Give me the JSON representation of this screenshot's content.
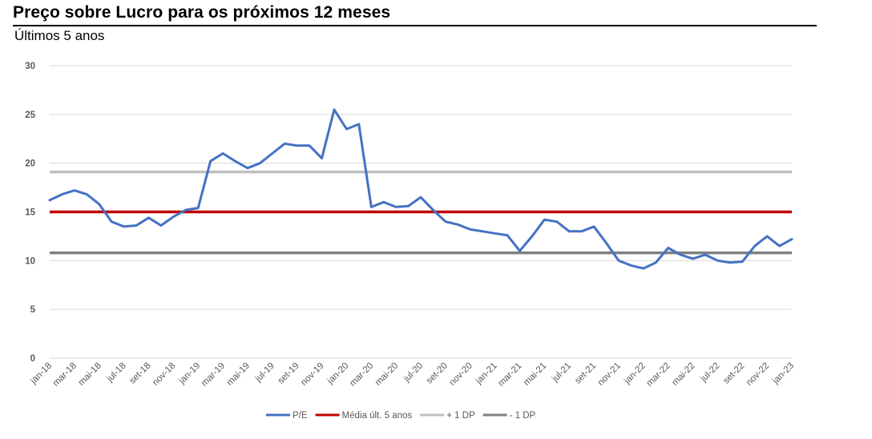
{
  "title": "Preço sobre Lucro para os próximos 12 meses",
  "subtitle": "Últimos 5 anos",
  "chart_data": {
    "type": "line",
    "ylim": [
      0,
      30
    ],
    "y_ticks": [
      "0",
      "5",
      "10",
      "15",
      "20",
      "25",
      "30"
    ],
    "x_ticks": [
      "jan-18",
      "mar-18",
      "mai-18",
      "jul-18",
      "set-18",
      "nov-18",
      "jan-19",
      "mar-19",
      "mai-19",
      "jul-19",
      "set-19",
      "nov-19",
      "jan-20",
      "mar-20",
      "mai-20",
      "jul-20",
      "set-20",
      "nov-20",
      "jan-21",
      "mar-21",
      "mai-21",
      "jul-21",
      "set-21",
      "nov-21",
      "jan-22",
      "mar-22",
      "mai-22",
      "jul-22",
      "set-22",
      "nov-22",
      "jan-23"
    ],
    "grid": true,
    "legend_position": "bottom",
    "series": [
      {
        "name": "P/E",
        "color": "#4472C4",
        "x": [
          "jan-18",
          "fev-18",
          "mar-18",
          "abr-18",
          "mai-18",
          "jun-18",
          "jul-18",
          "ago-18",
          "set-18",
          "out-18",
          "nov-18",
          "dez-18",
          "jan-19",
          "fev-19",
          "mar-19",
          "abr-19",
          "mai-19",
          "jun-19",
          "jul-19",
          "ago-19",
          "set-19",
          "out-19",
          "nov-19",
          "dez-19",
          "jan-20",
          "fev-20",
          "mar-20",
          "abr-20",
          "mai-20",
          "jun-20",
          "jul-20",
          "ago-20",
          "set-20",
          "out-20",
          "nov-20",
          "dez-20",
          "jan-21",
          "fev-21",
          "mar-21",
          "abr-21",
          "mai-21",
          "jun-21",
          "jul-21",
          "ago-21",
          "set-21",
          "out-21",
          "nov-21",
          "dez-21",
          "jan-22",
          "fev-22",
          "mar-22",
          "abr-22",
          "mai-22",
          "jun-22",
          "jul-22",
          "ago-22",
          "set-22",
          "out-22",
          "nov-22",
          "dez-22",
          "jan-23"
        ],
        "values": [
          16.2,
          16.8,
          17.2,
          16.8,
          15.8,
          14.0,
          13.5,
          13.6,
          14.4,
          13.6,
          14.5,
          15.2,
          15.4,
          20.2,
          21.0,
          20.2,
          19.5,
          20.0,
          21.0,
          22.0,
          21.8,
          21.8,
          20.5,
          25.5,
          23.5,
          24.0,
          15.5,
          16.0,
          15.5,
          15.6,
          16.5,
          15.2,
          14.0,
          13.7,
          13.2,
          13.0,
          12.8,
          12.6,
          11.0,
          12.5,
          14.2,
          14.0,
          13.0,
          13.0,
          13.5,
          11.8,
          10.0,
          9.5,
          9.2,
          9.8,
          11.3,
          10.6,
          10.2,
          10.6,
          10.0,
          9.8,
          9.9,
          11.5,
          12.5,
          11.5,
          12.2
        ]
      },
      {
        "name": "Média últ. 5 anos",
        "color": "#C00000",
        "value": 15.0
      },
      {
        "name": "+ 1 DP",
        "color": "#BFBFBF",
        "value": 19.1
      },
      {
        "name": "- 1 DP",
        "color": "#808080",
        "value": 10.8
      }
    ]
  }
}
